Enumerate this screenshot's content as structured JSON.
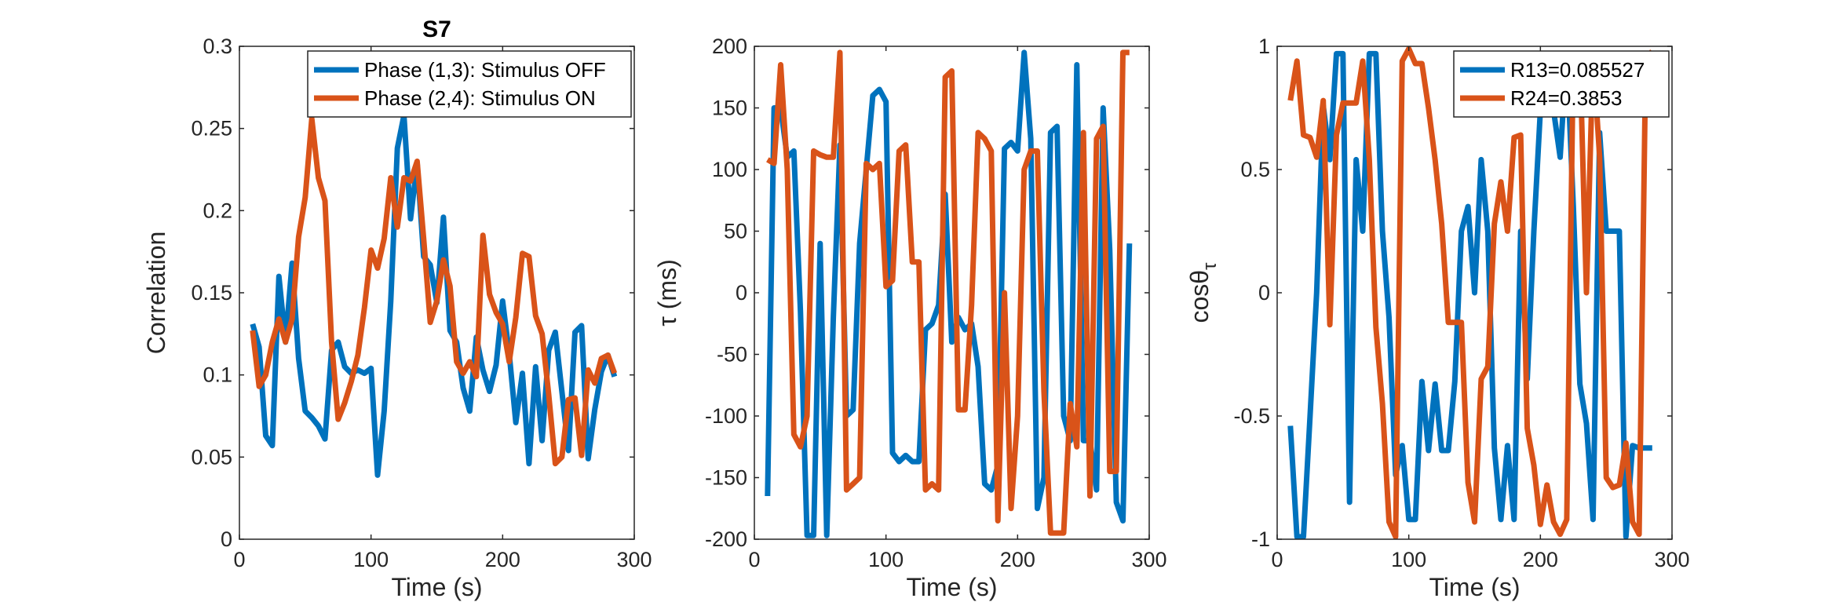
{
  "chart_data": [
    {
      "type": "line",
      "title": "S7",
      "xlabel": "Time (s)",
      "ylabel": "Correlation",
      "xlim": [
        0,
        300
      ],
      "ylim": [
        0,
        0.3
      ],
      "xticks": [
        "0",
        "100",
        "200",
        "300"
      ],
      "yticks": [
        "0",
        "0.05",
        "0.1",
        "0.15",
        "0.2",
        "0.25",
        "0.3"
      ],
      "legend": "top-right",
      "series": [
        {
          "name": "Phase (1,3): Stimulus OFF",
          "color": "#0072BD",
          "x": [
            10,
            15,
            20,
            25,
            30,
            35,
            40,
            45,
            50,
            55,
            60,
            65,
            70,
            75,
            80,
            85,
            90,
            95,
            100,
            105,
            110,
            115,
            120,
            125,
            130,
            135,
            140,
            145,
            150,
            155,
            160,
            165,
            170,
            175,
            180,
            185,
            190,
            195,
            200,
            205,
            210,
            215,
            220,
            225,
            230,
            235,
            240,
            245,
            250,
            255,
            260,
            265,
            270,
            275,
            280,
            285
          ],
          "y": [
            0.131,
            0.117,
            0.063,
            0.057,
            0.16,
            0.12,
            0.168,
            0.11,
            0.078,
            0.074,
            0.069,
            0.061,
            0.115,
            0.12,
            0.105,
            0.101,
            0.103,
            0.101,
            0.104,
            0.039,
            0.078,
            0.145,
            0.238,
            0.258,
            0.195,
            0.229,
            0.172,
            0.167,
            0.144,
            0.196,
            0.127,
            0.12,
            0.092,
            0.078,
            0.123,
            0.103,
            0.09,
            0.106,
            0.145,
            0.113,
            0.071,
            0.101,
            0.046,
            0.105,
            0.06,
            0.115,
            0.126,
            0.09,
            0.054,
            0.126,
            0.13,
            0.049,
            0.079,
            0.102,
            0.112,
            0.099
          ]
        },
        {
          "name": "Phase (2,4): Stimulus ON",
          "color": "#D95319",
          "x": [
            10,
            15,
            20,
            25,
            30,
            35,
            40,
            45,
            50,
            55,
            60,
            65,
            70,
            75,
            80,
            85,
            90,
            95,
            100,
            105,
            110,
            115,
            120,
            125,
            130,
            135,
            140,
            145,
            150,
            155,
            160,
            165,
            170,
            175,
            180,
            185,
            190,
            195,
            200,
            205,
            210,
            215,
            220,
            225,
            230,
            235,
            240,
            245,
            250,
            255,
            260,
            265,
            270,
            275,
            280,
            285
          ],
          "y": [
            0.127,
            0.093,
            0.1,
            0.12,
            0.134,
            0.12,
            0.134,
            0.184,
            0.208,
            0.256,
            0.22,
            0.206,
            0.12,
            0.073,
            0.083,
            0.096,
            0.112,
            0.141,
            0.176,
            0.165,
            0.183,
            0.22,
            0.19,
            0.22,
            0.218,
            0.23,
            0.183,
            0.132,
            0.145,
            0.17,
            0.154,
            0.108,
            0.101,
            0.108,
            0.099,
            0.185,
            0.149,
            0.138,
            0.131,
            0.108,
            0.135,
            0.174,
            0.172,
            0.136,
            0.125,
            0.088,
            0.046,
            0.05,
            0.085,
            0.086,
            0.051,
            0.103,
            0.095,
            0.11,
            0.112,
            0.101
          ]
        }
      ]
    },
    {
      "type": "line",
      "title": "",
      "xlabel": "Time (s)",
      "ylabel": "τ (ms)",
      "xlim": [
        0,
        300
      ],
      "ylim": [
        -200,
        200
      ],
      "xticks": [
        "0",
        "100",
        "200",
        "300"
      ],
      "yticks": [
        "-200",
        "-150",
        "-100",
        "-50",
        "0",
        "50",
        "100",
        "150",
        "200"
      ],
      "series": [
        {
          "name": "",
          "color": "#0072BD",
          "x": [
            10,
            15,
            20,
            25,
            30,
            35,
            40,
            45,
            50,
            55,
            60,
            65,
            70,
            75,
            80,
            85,
            90,
            95,
            100,
            105,
            110,
            115,
            120,
            125,
            130,
            135,
            140,
            145,
            150,
            155,
            160,
            165,
            170,
            175,
            180,
            185,
            190,
            195,
            200,
            205,
            210,
            215,
            220,
            225,
            230,
            235,
            240,
            245,
            250,
            255,
            260,
            265,
            270,
            275,
            280,
            285
          ],
          "y": [
            -165,
            150,
            150,
            110,
            115,
            -15,
            -197,
            -197,
            40,
            -197,
            -20,
            120,
            -100,
            -95,
            40,
            100,
            160,
            165,
            155,
            -130,
            -137,
            -132,
            -137,
            -137,
            -30,
            -25,
            -10,
            80,
            -40,
            -20,
            -30,
            -25,
            -60,
            -155,
            -160,
            -140,
            117,
            122,
            115,
            195,
            125,
            -175,
            -150,
            130,
            135,
            -100,
            -120,
            185,
            -120,
            -120,
            -160,
            150,
            35,
            -170,
            -185,
            40
          ]
        },
        {
          "name": "",
          "color": "#D95319",
          "x": [
            10,
            15,
            20,
            25,
            30,
            35,
            40,
            45,
            50,
            55,
            60,
            65,
            70,
            75,
            80,
            85,
            90,
            95,
            100,
            105,
            110,
            115,
            120,
            125,
            130,
            135,
            140,
            145,
            150,
            155,
            160,
            165,
            170,
            175,
            180,
            185,
            190,
            195,
            200,
            205,
            210,
            215,
            220,
            225,
            230,
            235,
            240,
            245,
            250,
            255,
            260,
            265,
            270,
            275,
            280,
            285
          ],
          "y": [
            108,
            105,
            185,
            100,
            -115,
            -125,
            -100,
            115,
            112,
            110,
            110,
            195,
            -160,
            -155,
            -150,
            105,
            100,
            105,
            5,
            10,
            115,
            120,
            25,
            25,
            -160,
            -155,
            -160,
            175,
            180,
            -95,
            -95,
            -10,
            130,
            125,
            115,
            -185,
            0,
            -175,
            -100,
            100,
            115,
            115,
            -80,
            -195,
            -195,
            -195,
            -90,
            -125,
            130,
            -165,
            125,
            135,
            -145,
            -145,
            195,
            195
          ]
        }
      ]
    },
    {
      "type": "line",
      "title": "",
      "xlabel": "Time (s)",
      "ylabel": "cosθ",
      "ylabel_sub": "τ",
      "xlim": [
        0,
        300
      ],
      "ylim": [
        -1,
        1
      ],
      "xticks": [
        "0",
        "100",
        "200",
        "300"
      ],
      "yticks": [
        "-1",
        "-0.5",
        "0",
        "0.5",
        "1"
      ],
      "legend": "top-right",
      "series": [
        {
          "name": "R13=0.085527",
          "color": "#0072BD",
          "x": [
            10,
            15,
            20,
            25,
            30,
            35,
            40,
            45,
            50,
            55,
            60,
            65,
            70,
            75,
            80,
            85,
            90,
            95,
            100,
            105,
            110,
            115,
            120,
            125,
            130,
            135,
            140,
            145,
            150,
            155,
            160,
            165,
            170,
            175,
            180,
            185,
            190,
            195,
            200,
            205,
            210,
            215,
            220,
            225,
            230,
            235,
            240,
            245,
            250,
            255,
            260,
            265,
            270,
            275,
            280,
            285
          ],
          "y": [
            -0.54,
            -0.99,
            -0.99,
            -0.5,
            0.0,
            0.76,
            0.54,
            0.97,
            0.97,
            -0.85,
            0.54,
            0.25,
            0.97,
            0.97,
            0.25,
            -0.1,
            -0.74,
            -0.62,
            -0.92,
            -0.92,
            -0.36,
            -0.64,
            -0.37,
            -0.64,
            -0.64,
            -0.36,
            0.25,
            0.35,
            0.0,
            0.54,
            0.25,
            -0.63,
            -0.92,
            -0.62,
            -0.92,
            0.25,
            -0.35,
            0.25,
            0.74,
            0.97,
            0.74,
            0.55,
            0.97,
            0.35,
            -0.37,
            -0.53,
            -0.92,
            0.65,
            0.25,
            0.25,
            0.25,
            -0.99,
            -0.62,
            -0.63,
            -0.63,
            -0.63
          ]
        },
        {
          "name": "R24=0.3853",
          "color": "#D95319",
          "x": [
            10,
            15,
            20,
            25,
            30,
            35,
            40,
            45,
            50,
            55,
            60,
            65,
            70,
            75,
            80,
            85,
            90,
            95,
            100,
            105,
            110,
            115,
            120,
            125,
            130,
            135,
            140,
            145,
            150,
            155,
            160,
            165,
            170,
            175,
            180,
            185,
            190,
            195,
            200,
            205,
            210,
            215,
            220,
            225,
            230,
            235,
            240,
            245,
            250,
            255,
            260,
            265,
            270,
            275,
            280,
            285
          ],
          "y": [
            0.78,
            0.94,
            0.64,
            0.63,
            0.55,
            0.78,
            -0.13,
            0.64,
            0.77,
            0.77,
            0.77,
            0.94,
            0.54,
            -0.14,
            -0.45,
            -0.93,
            -0.99,
            0.94,
            0.99,
            0.93,
            0.93,
            0.75,
            0.54,
            0.28,
            -0.12,
            -0.12,
            -0.12,
            -0.77,
            -0.93,
            -0.35,
            -0.3,
            0.28,
            0.45,
            0.25,
            0.63,
            0.64,
            -0.55,
            -0.7,
            -0.94,
            -0.78,
            -0.93,
            -0.98,
            -0.92,
            0.97,
            0.97,
            0.0,
            0.97,
            0.55,
            -0.75,
            -0.79,
            -0.78,
            -0.61,
            -0.93,
            -0.98,
            0.95,
            0.98
          ]
        }
      ]
    }
  ]
}
